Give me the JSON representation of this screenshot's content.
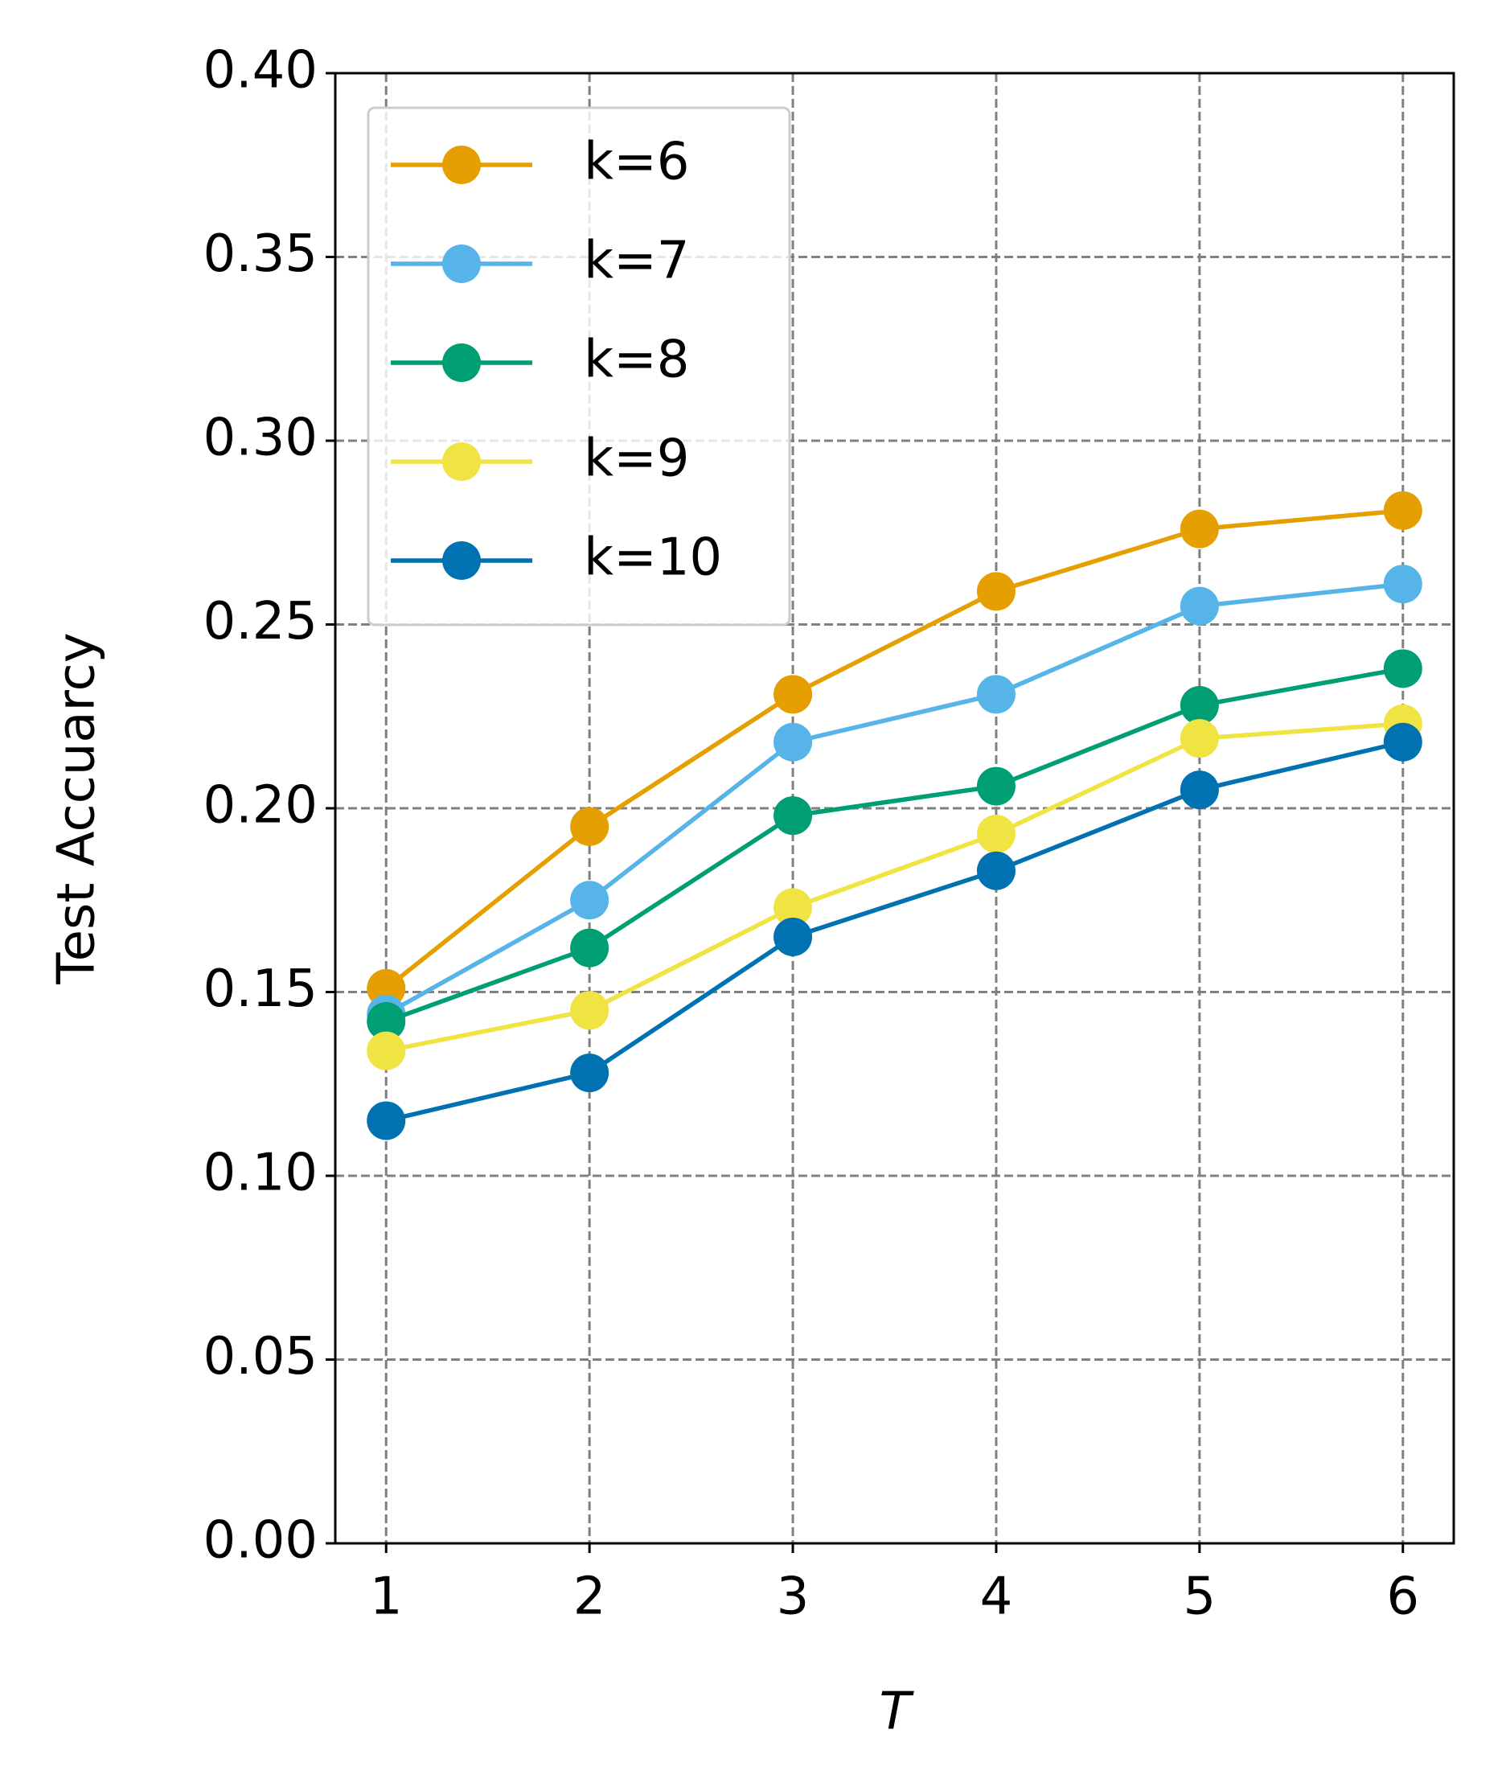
{
  "chart_data": {
    "type": "line",
    "x_label": "T",
    "y_label": "Test Accuarcy",
    "x": [
      1,
      2,
      3,
      4,
      5,
      6
    ],
    "series": [
      {
        "name": "k=6",
        "color": "#E69F00",
        "values": [
          0.151,
          0.195,
          0.231,
          0.259,
          0.276,
          0.281
        ]
      },
      {
        "name": "k=7",
        "color": "#56B4E9",
        "values": [
          0.144,
          0.175,
          0.218,
          0.231,
          0.255,
          0.261
        ]
      },
      {
        "name": "k=8",
        "color": "#009E73",
        "values": [
          0.142,
          0.162,
          0.198,
          0.206,
          0.228,
          0.238
        ]
      },
      {
        "name": "k=9",
        "color": "#F0E442",
        "values": [
          0.134,
          0.145,
          0.173,
          0.193,
          0.219,
          0.223
        ]
      },
      {
        "name": "k=10",
        "color": "#0072B2",
        "values": [
          0.115,
          0.128,
          0.165,
          0.183,
          0.205,
          0.218
        ]
      }
    ],
    "xlim": [
      0.75,
      6.25
    ],
    "xticks": [
      1,
      2,
      3,
      4,
      5,
      6
    ],
    "ylim": [
      0,
      0.4
    ],
    "yticks": [
      {
        "value": 0,
        "label": "0.00"
      },
      {
        "value": 0.05,
        "label": "0.05"
      },
      {
        "value": 0.1,
        "label": "0.10"
      },
      {
        "value": 0.15,
        "label": "0.15"
      },
      {
        "value": 0.2,
        "label": "0.20"
      },
      {
        "value": 0.25,
        "label": "0.25"
      },
      {
        "value": 0.3,
        "label": "0.30"
      },
      {
        "value": 0.35,
        "label": "0.35"
      },
      {
        "value": 0.4,
        "label": "0.40"
      }
    ],
    "grid": true,
    "legend": "upper left"
  }
}
